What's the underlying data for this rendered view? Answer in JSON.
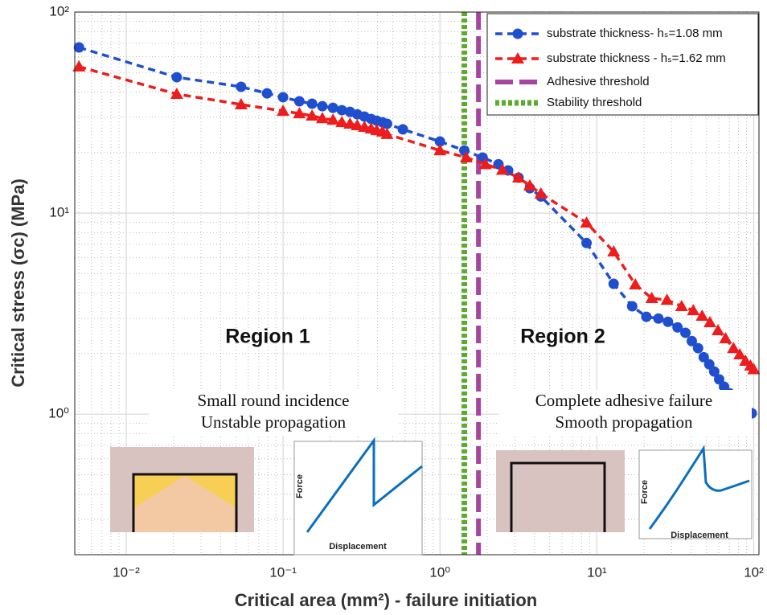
{
  "chart_data": {
    "type": "line",
    "xlabel": "Critical area (mm²) - failure initiation",
    "ylabel": "Critical stress (σc) (MPa)",
    "xscale": "log",
    "yscale": "log",
    "xlim": [
      0.0047,
      108
    ],
    "ylim": [
      0.2,
      100
    ],
    "xticks": [
      {
        "value": 0.01,
        "label": "10⁻²"
      },
      {
        "value": 0.1,
        "label": "10⁻¹"
      },
      {
        "value": 1,
        "label": "10⁰"
      },
      {
        "value": 10,
        "label": "10¹"
      },
      {
        "value": 100,
        "label": "10²"
      }
    ],
    "yticks": [
      {
        "value": 1,
        "label": "10⁰"
      },
      {
        "value": 10,
        "label": "10¹"
      },
      {
        "value": 100,
        "label": "10²"
      }
    ],
    "grid": true,
    "minor_grid": true,
    "legend": "upper right",
    "series": [
      {
        "name": "substrate thickness- hₛ=1.08 mm",
        "color": "#1f4fcf",
        "marker": "o",
        "linestyle": "--",
        "x": [
          0.005,
          0.021,
          0.054,
          0.079,
          0.1,
          0.127,
          0.153,
          0.178,
          0.208,
          0.237,
          0.267,
          0.297,
          0.33,
          0.364,
          0.395,
          0.43,
          0.46,
          0.58,
          1.0,
          1.43,
          1.87,
          2.36,
          2.72,
          3.17,
          3.74,
          4.4,
          8.6,
          12.8,
          16.8,
          20.7,
          24.7,
          28.4,
          32.7,
          36.7,
          40.3,
          44.2,
          48.0,
          52.1,
          56.0,
          60.2,
          64.7,
          70.1,
          76.2,
          83.6,
          91.7,
          97.2
        ],
        "values": [
          66.7,
          47.4,
          42.5,
          39.4,
          37.7,
          36.0,
          35.0,
          34.0,
          33.4,
          32.5,
          31.9,
          31.0,
          30.2,
          29.4,
          28.8,
          28.3,
          27.8,
          26.1,
          22.7,
          20.5,
          18.9,
          17.5,
          16.3,
          15.0,
          13.3,
          12.1,
          7.1,
          4.45,
          3.44,
          3.05,
          2.99,
          2.88,
          2.7,
          2.54,
          2.31,
          2.13,
          1.92,
          1.77,
          1.63,
          1.49,
          1.37,
          1.27,
          1.17,
          1.09,
          1.04,
          1.01
        ]
      },
      {
        "name": "substrate thickness - hₛ=1.62 mm",
        "color": "#ee1c1c",
        "marker": "^",
        "linestyle": "--",
        "x": [
          0.005,
          0.021,
          0.054,
          0.1,
          0.127,
          0.153,
          0.178,
          0.208,
          0.237,
          0.267,
          0.297,
          0.33,
          0.364,
          0.395,
          0.43,
          0.46,
          1.0,
          1.47,
          1.95,
          2.5,
          3.17,
          3.74,
          4.4,
          8.6,
          12.8,
          17.6,
          22.4,
          28.0,
          34.7,
          41.2,
          46.9,
          52.6,
          59.2,
          66.1,
          74.3,
          81.5,
          88.6,
          95.4,
          100
        ],
        "values": [
          53.5,
          39.1,
          34.7,
          32.2,
          31.3,
          30.5,
          29.6,
          29.1,
          28.3,
          27.8,
          27.3,
          26.8,
          26.3,
          25.8,
          25.4,
          24.7,
          20.5,
          18.9,
          17.5,
          16.4,
          15.0,
          13.7,
          12.5,
          8.95,
          6.43,
          4.41,
          3.77,
          3.7,
          3.44,
          3.28,
          3.08,
          2.86,
          2.61,
          2.38,
          2.13,
          1.98,
          1.84,
          1.74,
          1.67
        ]
      }
    ],
    "threshold_lines": [
      {
        "name": "Adhesive threshold",
        "color": "#a6449f",
        "x": 1.76,
        "linestyle": "long-dash"
      },
      {
        "name": "Stability threshold",
        "color": "#5aab2e",
        "x": 1.43,
        "linestyle": "dotted"
      }
    ],
    "annotations": [
      "Region 1",
      "Region 2",
      "Small round incidence",
      "Unstable propagation",
      "Complete adhesive failure",
      "Smooth propagation",
      "Force",
      "Displacement",
      "Force",
      "Displacement"
    ]
  }
}
